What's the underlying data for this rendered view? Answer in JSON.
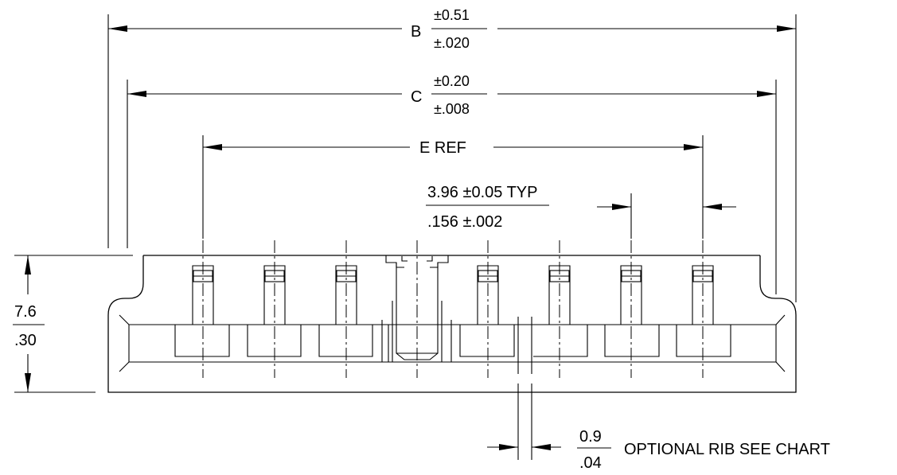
{
  "dimensions": {
    "b": {
      "letter": "B",
      "tol_mm": "±0.51",
      "tol_in": "±.020"
    },
    "c": {
      "letter": "C",
      "tol_mm": "±0.20",
      "tol_in": "±.008"
    },
    "e": {
      "label": "E REF"
    },
    "pitch": {
      "line1": "3.96 ±0.05 TYP",
      "line2": ".156 ±.002"
    },
    "height": {
      "mm": "7.6",
      "in": ".30"
    },
    "rib": {
      "mm": "0.9",
      "in": ".04",
      "note": "OPTIONAL RIB SEE CHART"
    }
  }
}
